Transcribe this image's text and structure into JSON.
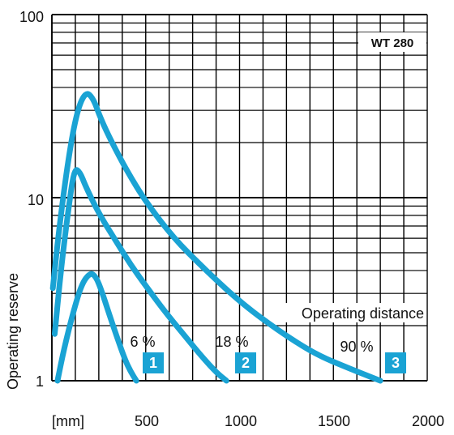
{
  "chart_data": {
    "type": "line",
    "title": "",
    "model_label": "WT 280",
    "ylabel": "Operating reserve",
    "xlabel": "Operating distance",
    "x_unit": "[mm]",
    "x_ticks": [
      "500",
      "1000",
      "1500",
      "2000"
    ],
    "y_ticks": [
      "1",
      "10",
      "100"
    ],
    "xlim": [
      0,
      2000
    ],
    "ylim": [
      1,
      100
    ],
    "y_scale": "log",
    "grid": true,
    "colors": {
      "curve": "#1AA3D4",
      "badge": "#1AA3D4",
      "grid": "#000000"
    },
    "series": [
      {
        "name": "6 %",
        "badge": "1",
        "x": [
          30,
          65,
          115,
          160,
          205,
          235,
          265,
          300,
          345,
          390,
          420,
          450
        ],
        "y": [
          1,
          1.5,
          2.4,
          3.4,
          3.9,
          3.7,
          3.1,
          2.4,
          1.75,
          1.3,
          1.12,
          1.0
        ]
      },
      {
        "name": "18 %",
        "badge": "2",
        "x": [
          15,
          50,
          90,
          120,
          150,
          180,
          250,
          350,
          420,
          500,
          600,
          700,
          800,
          880,
          930
        ],
        "y": [
          1.8,
          4.2,
          9,
          14.5,
          13.8,
          11.5,
          8.2,
          5.6,
          4.3,
          3.3,
          2.4,
          1.8,
          1.35,
          1.1,
          1.0
        ]
      },
      {
        "name": "90 %",
        "badge": "3",
        "x": [
          5,
          40,
          90,
          135,
          180,
          220,
          260,
          320,
          400,
          500,
          650,
          800,
          1000,
          1200,
          1400,
          1600,
          1750
        ],
        "y": [
          3.2,
          7,
          17,
          30,
          38,
          35,
          27,
          20,
          14,
          9.5,
          6,
          4.2,
          2.7,
          1.9,
          1.4,
          1.15,
          1.0
        ]
      }
    ]
  }
}
